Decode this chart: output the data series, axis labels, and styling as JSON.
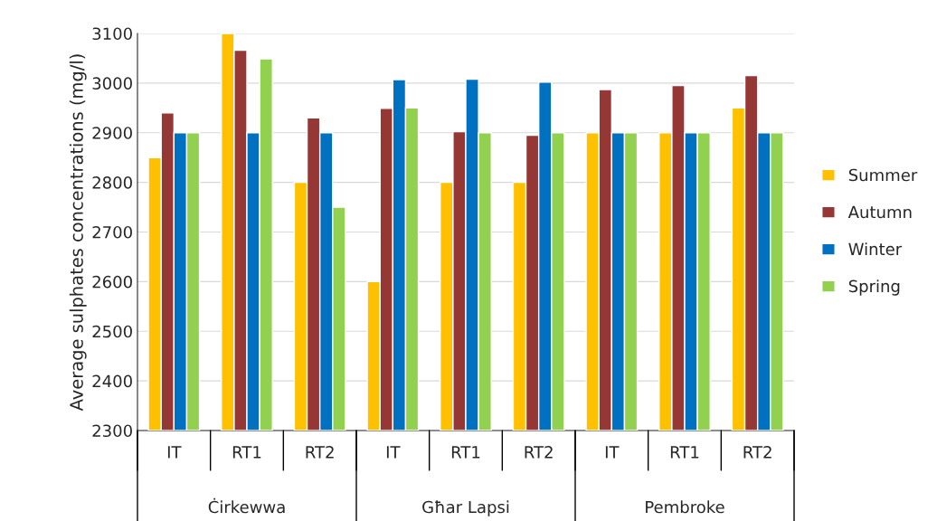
{
  "chart_data": {
    "type": "bar",
    "ylabel": "Average sulphates concentrations (mg/l)",
    "categories": [
      "IT",
      "RT1",
      "RT2",
      "IT",
      "RT1",
      "RT2",
      "IT",
      "RT1",
      "RT2"
    ],
    "annotations": [
      "Ċirkewwa",
      "Għar Lapsi",
      "Pembroke"
    ],
    "series": [
      {
        "name": "Summer",
        "color": "#ffc000",
        "values": [
          2850,
          3100,
          2800,
          2600,
          2800,
          2800,
          2900,
          2900,
          2950
        ]
      },
      {
        "name": "Autumn",
        "color": "#953735",
        "values": [
          2940,
          3066,
          2930,
          2949,
          2902,
          2895,
          2987,
          2995,
          3015
        ]
      },
      {
        "name": "Winter",
        "color": "#0070c0",
        "values": [
          2900,
          2900,
          2900,
          3007,
          3008,
          3002,
          2900,
          2900,
          2900
        ]
      },
      {
        "name": "Spring",
        "color": "#92d050",
        "values": [
          2900,
          3049,
          2750,
          2950,
          2900,
          2900,
          2900,
          2900,
          2900
        ]
      }
    ],
    "ylim": [
      2300,
      3100
    ],
    "yticks": [
      2300,
      2400,
      2500,
      2600,
      2700,
      2800,
      2900,
      3000,
      3100
    ],
    "grid": "y",
    "legend": "right"
  }
}
